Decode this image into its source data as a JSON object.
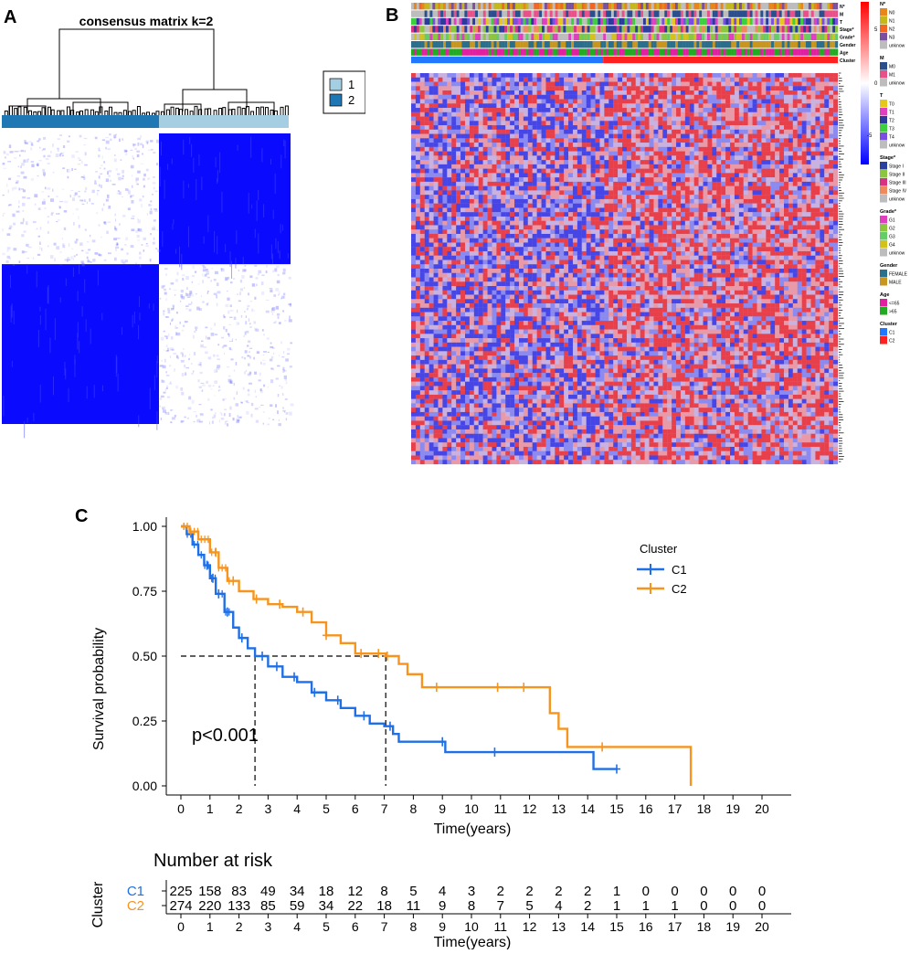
{
  "panels": {
    "a": "A",
    "b": "B",
    "c": "C"
  },
  "consensus": {
    "title": "consensus matrix k=2",
    "legend": [
      {
        "label": "1",
        "color": "#a6cee3"
      },
      {
        "label": "2",
        "color": "#1f78b4"
      }
    ],
    "block_color": "#0000ff"
  },
  "heatmap": {
    "annotation_rows": [
      "N*",
      "M",
      "T",
      "Stage*",
      "Grade*",
      "Gender",
      "Age",
      "Cluster"
    ],
    "colorbar": {
      "max": "5",
      "mid": "0",
      "min": "-5",
      "high_color": "#ff0000",
      "low_color": "#0000ff"
    },
    "legend_groups": [
      {
        "title": "N*",
        "items": [
          {
            "label": "N0",
            "color": "#e7861b"
          },
          {
            "label": "N1",
            "color": "#c5b81d"
          },
          {
            "label": "N2",
            "color": "#f26522"
          },
          {
            "label": "N3",
            "color": "#7b4fa0"
          },
          {
            "label": "unknow",
            "color": "#bdbdbd"
          }
        ]
      },
      {
        "title": "M",
        "items": [
          {
            "label": "M0",
            "color": "#2a4f8c"
          },
          {
            "label": "M1",
            "color": "#e8508a"
          },
          {
            "label": "unknow",
            "color": "#bdbdbd"
          }
        ]
      },
      {
        "title": "T",
        "items": [
          {
            "label": "T0",
            "color": "#e6c81c"
          },
          {
            "label": "T1",
            "color": "#e040c0"
          },
          {
            "label": "T2",
            "color": "#2b3a9c"
          },
          {
            "label": "T3",
            "color": "#3ecf3e"
          },
          {
            "label": "T4",
            "color": "#7a4fe0"
          },
          {
            "label": "unknow",
            "color": "#bdbdbd"
          }
        ]
      },
      {
        "title": "Stage*",
        "items": [
          {
            "label": "Stage I",
            "color": "#2b3fa0"
          },
          {
            "label": "Stage II",
            "color": "#8cc63e"
          },
          {
            "label": "Stage III",
            "color": "#d63384"
          },
          {
            "label": "Stage IV",
            "color": "#f08a5d"
          },
          {
            "label": "unknow",
            "color": "#bdbdbd"
          }
        ]
      },
      {
        "title": "Grade*",
        "items": [
          {
            "label": "G1",
            "color": "#e040c0"
          },
          {
            "label": "G2",
            "color": "#8cc63e"
          },
          {
            "label": "G3",
            "color": "#66cc66"
          },
          {
            "label": "G4",
            "color": "#d4c21c"
          },
          {
            "label": "unknow",
            "color": "#bdbdbd"
          }
        ]
      },
      {
        "title": "Gender",
        "items": [
          {
            "label": "FEMALE",
            "color": "#2a6f8c"
          },
          {
            "label": "MALE",
            "color": "#c8961e"
          }
        ]
      },
      {
        "title": "Age",
        "items": [
          {
            "label": "<=65",
            "color": "#e020a0"
          },
          {
            "label": ">65",
            "color": "#22aa22"
          }
        ]
      },
      {
        "title": "Cluster",
        "items": [
          {
            "label": "C1",
            "color": "#1f78ff"
          },
          {
            "label": "C2",
            "color": "#ff2020"
          }
        ]
      }
    ]
  },
  "chart_data": {
    "type": "line",
    "title": "",
    "xlabel": "Time(years)",
    "ylabel": "Survival probability",
    "xlim": [
      0,
      20
    ],
    "ylim": [
      0,
      1
    ],
    "xticks": [
      0,
      1,
      2,
      3,
      4,
      5,
      6,
      7,
      8,
      9,
      10,
      11,
      12,
      13,
      14,
      15,
      16,
      17,
      18,
      19,
      20
    ],
    "yticks": [
      "0.00",
      "0.25",
      "0.50",
      "0.75",
      "1.00"
    ],
    "legend_title": "Cluster",
    "annotation": "p<0.001",
    "median_survival": {
      "C1": 2.55,
      "C2": 7.05
    },
    "series": [
      {
        "name": "C1",
        "color": "#1f6fe6",
        "x": [
          0,
          0.2,
          0.4,
          0.6,
          0.8,
          1,
          1.2,
          1.5,
          1.8,
          2,
          2.3,
          2.55,
          3,
          3.5,
          4,
          4.5,
          5,
          5.5,
          6,
          6.5,
          7,
          7.3,
          7.5,
          8,
          9,
          9.1,
          10,
          11,
          12,
          13,
          14,
          14.2,
          15
        ],
        "y": [
          1,
          0.97,
          0.93,
          0.89,
          0.85,
          0.8,
          0.74,
          0.67,
          0.61,
          0.57,
          0.53,
          0.5,
          0.46,
          0.42,
          0.4,
          0.36,
          0.33,
          0.3,
          0.27,
          0.24,
          0.23,
          0.2,
          0.17,
          0.17,
          0.17,
          0.13,
          0.13,
          0.13,
          0.13,
          0.13,
          0.13,
          0.065,
          0.065
        ],
        "censor_x": [
          0.9,
          1.1,
          1.3,
          1.6,
          2.1,
          2.8,
          3.3,
          3.9,
          4.6,
          5.4,
          6.3,
          7.2,
          9,
          10.8,
          15
        ]
      },
      {
        "name": "C2",
        "color": "#f7941d",
        "x": [
          0,
          0.3,
          0.6,
          1,
          1.3,
          1.6,
          2,
          2.5,
          3,
          3.5,
          4,
          4.5,
          5,
          5.5,
          6,
          6.5,
          7,
          7.05,
          7.5,
          7.8,
          8.3,
          9,
          10,
          11,
          12,
          12.7,
          13,
          13.3,
          14,
          15,
          16,
          17,
          17.55
        ],
        "y": [
          1,
          0.98,
          0.95,
          0.9,
          0.84,
          0.79,
          0.75,
          0.72,
          0.7,
          0.69,
          0.67,
          0.63,
          0.58,
          0.55,
          0.51,
          0.51,
          0.51,
          0.5,
          0.47,
          0.43,
          0.38,
          0.38,
          0.38,
          0.38,
          0.38,
          0.28,
          0.22,
          0.15,
          0.15,
          0.15,
          0.15,
          0.15,
          0
        ],
        "censor_x": [
          1.2,
          1.8,
          2.6,
          3.4,
          4.2,
          5,
          6.2,
          6.8,
          7.1,
          8.8,
          10.9,
          11.8,
          14.5
        ]
      }
    ],
    "risk_table": {
      "title": "Number at risk",
      "ylabel": "Cluster",
      "xlabel": "Time(years)",
      "rows": [
        {
          "name": "C1",
          "color": "#1f6fe6",
          "values": [
            225,
            158,
            83,
            49,
            34,
            18,
            12,
            8,
            5,
            4,
            3,
            2,
            2,
            2,
            2,
            1,
            0,
            0,
            0,
            0,
            0
          ]
        },
        {
          "name": "C2",
          "color": "#f7941d",
          "values": [
            274,
            220,
            133,
            85,
            59,
            34,
            22,
            18,
            11,
            9,
            8,
            7,
            5,
            4,
            2,
            1,
            1,
            1,
            0,
            0,
            0
          ]
        }
      ]
    }
  }
}
